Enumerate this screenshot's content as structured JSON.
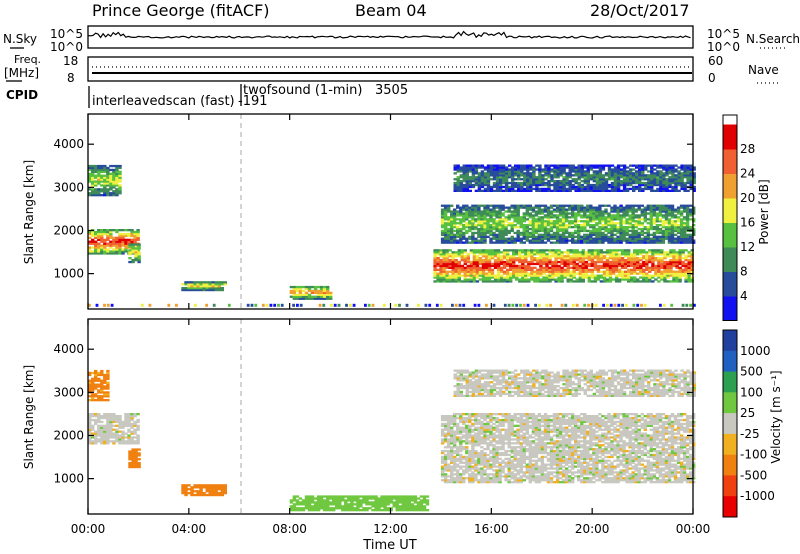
{
  "header": {
    "station": "Prince George (fitACF)",
    "beam": "Beam 04",
    "date": "28/Oct/2017"
  },
  "top_panel": {
    "left_label": "N.Sky",
    "left_ticks": [
      "10^5",
      "10^0"
    ],
    "right_ticks": [
      "10^5",
      "10^0"
    ],
    "right_label": "N.Search"
  },
  "freq_panel": {
    "left_label_1": "Freq.",
    "left_label_2": "[MHz]",
    "left_ticks": [
      "18",
      "8"
    ],
    "right_ticks": [
      "60",
      "0"
    ],
    "right_label": "Nave"
  },
  "cpid": {
    "label": "CPID",
    "entries": [
      {
        "name": "interleavedscan (fast)",
        "id": "-191",
        "hour": 0
      },
      {
        "name": "twofsound (1-min)",
        "id": "3505",
        "hour": 6
      }
    ]
  },
  "colors": {
    "power": [
      "#1010f0",
      "#284c9c",
      "#3e8a58",
      "#58c040",
      "#f0f040",
      "#f0a030",
      "#f06030",
      "#e00000"
    ],
    "velocity_neg": [
      "#e80000",
      "#f04010",
      "#f08010",
      "#f0b020"
    ],
    "velocity_pos": [
      "#2060c0",
      "#2aa050",
      "#70c840",
      "#2040a0"
    ],
    "velocity_ground": "#c8c8c0"
  },
  "chart_data": [
    {
      "type": "heatmap",
      "quantity": "Power",
      "ylabel": "Slant Range [km]",
      "ylim": [
        180,
        4700
      ],
      "yticks": [
        "1000",
        "2000",
        "3000",
        "4000"
      ],
      "xlim": [
        0,
        24
      ],
      "colorbar": {
        "label": "Power [dB]",
        "ticks": [
          "4",
          "8",
          "12",
          "16",
          "20",
          "24",
          "28"
        ],
        "range": [
          0,
          32
        ]
      },
      "echo_regions": [
        {
          "t_start": 0.0,
          "t_end": 2.0,
          "range_start": 1450,
          "range_end": 2000,
          "max_power": 30
        },
        {
          "t_start": 0.0,
          "t_end": 1.3,
          "range_start": 2800,
          "range_end": 3500,
          "max_power": 18
        },
        {
          "t_start": 1.6,
          "t_end": 2.0,
          "range_start": 1250,
          "range_end": 1700,
          "max_power": 20
        },
        {
          "t_start": 3.7,
          "t_end": 5.5,
          "range_start": 600,
          "range_end": 800,
          "max_power": 20
        },
        {
          "t_start": 8.0,
          "t_end": 9.6,
          "range_start": 400,
          "range_end": 700,
          "max_power": 24
        },
        {
          "t_start": 13.7,
          "t_end": 24.0,
          "range_start": 800,
          "range_end": 1550,
          "max_power": 30
        },
        {
          "t_start": 14.0,
          "t_end": 24.0,
          "range_start": 1700,
          "range_end": 2600,
          "max_power": 16
        },
        {
          "t_start": 14.5,
          "t_end": 24.0,
          "range_start": 2900,
          "range_end": 3500,
          "max_power": 10
        }
      ]
    },
    {
      "type": "heatmap",
      "quantity": "Velocity",
      "ylabel": "Slant Range [km]",
      "ylim": [
        180,
        4700
      ],
      "yticks": [
        "1000",
        "2000",
        "3000",
        "4000"
      ],
      "xlim": [
        0,
        24
      ],
      "xlabel": "Time UT",
      "xticks": [
        "00:00",
        "04:00",
        "08:00",
        "12:00",
        "16:00",
        "20:00",
        "00:00"
      ],
      "colorbar": {
        "label": "Velocity [m s⁻¹]",
        "ticks": [
          "1000",
          "500",
          "100",
          "25",
          "-25",
          "-100",
          "-500",
          "-1000"
        ]
      },
      "echo_regions": [
        {
          "t_start": 0.0,
          "t_end": 2.0,
          "range_start": 1800,
          "range_end": 2500,
          "velocity": 0
        },
        {
          "t_start": 0.0,
          "t_end": 0.8,
          "range_start": 2800,
          "range_end": 3500,
          "velocity": -120
        },
        {
          "t_start": 1.6,
          "t_end": 2.0,
          "range_start": 1250,
          "range_end": 1700,
          "velocity": -300
        },
        {
          "t_start": 3.7,
          "t_end": 5.5,
          "range_start": 600,
          "range_end": 850,
          "velocity": -300
        },
        {
          "t_start": 8.0,
          "t_end": 13.5,
          "range_start": 250,
          "range_end": 600,
          "velocity": 60
        },
        {
          "t_start": 14.0,
          "t_end": 24.0,
          "range_start": 900,
          "range_end": 2500,
          "velocity": 0
        },
        {
          "t_start": 14.5,
          "t_end": 24.0,
          "range_start": 2900,
          "range_end": 3500,
          "velocity": 0
        }
      ]
    }
  ]
}
